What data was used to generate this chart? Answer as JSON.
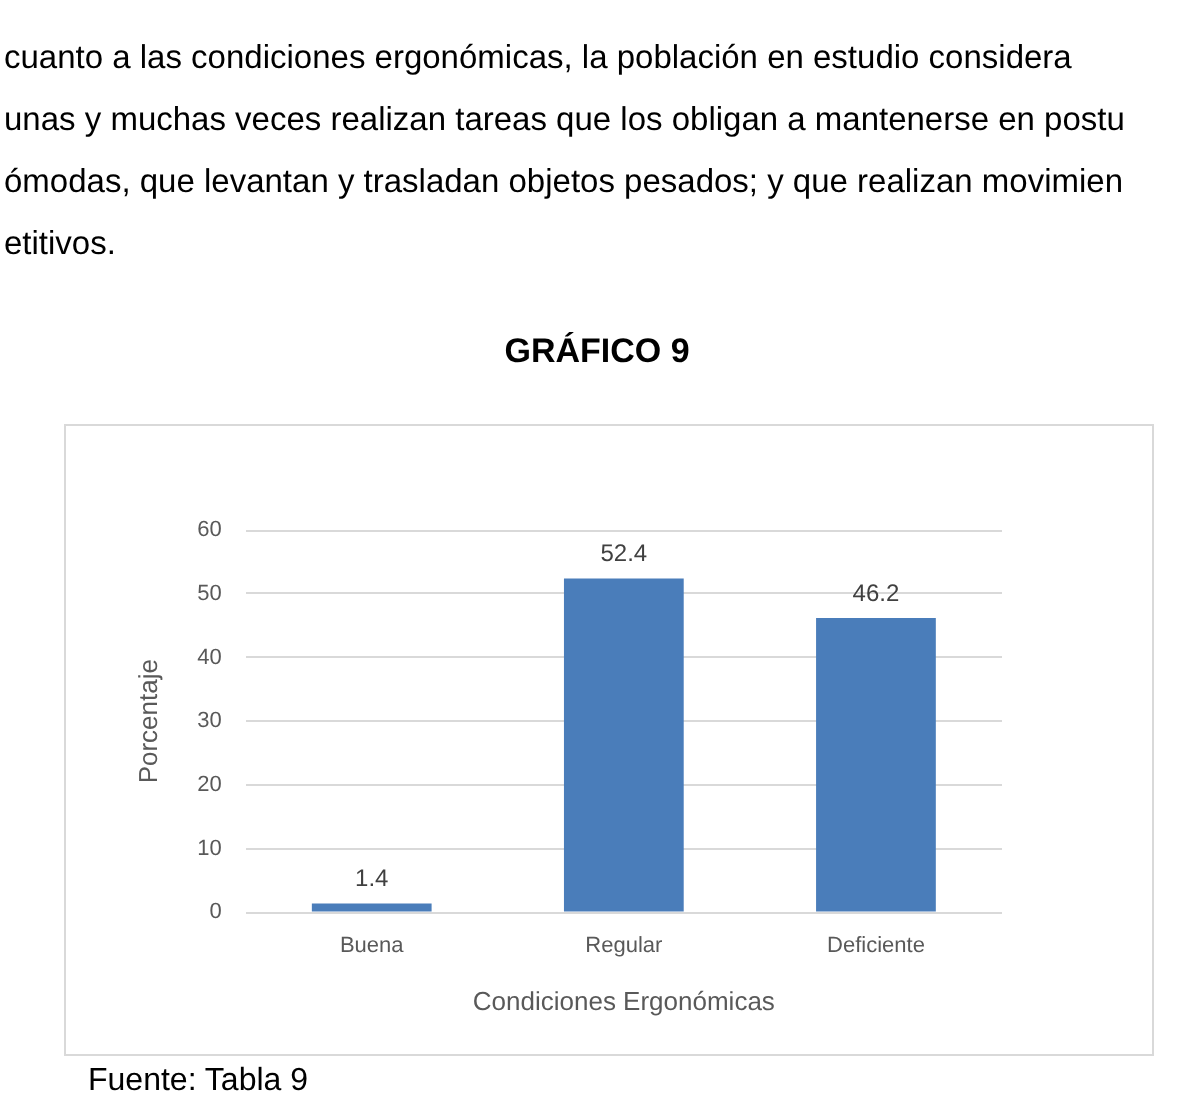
{
  "chart_data": {
    "type": "bar",
    "title": "GRÁFICO 9",
    "annotations": [
      "cuanto a las condiciones ergonómicas, la población en estudio considera\nunas y muchas veces realizan tareas que los obligan a mantenerse en postu\nómodas, que levantan y trasladan objetos pesados; y que realizan movimien\netitivos.",
      "Fuente: Tabla 9"
    ],
    "categories": [
      "Buena",
      "Regular",
      "Deficiente"
    ],
    "values": [
      1.4,
      52.4,
      46.2
    ],
    "color": "#4a7dba",
    "xlabel": "Condiciones Ergonómicas",
    "ylabel": "Porcentaje",
    "ylim": [
      0,
      60
    ],
    "yticks": [
      0,
      10,
      20,
      30,
      40,
      50,
      60
    ],
    "grid": "y",
    "data_labels": true
  }
}
